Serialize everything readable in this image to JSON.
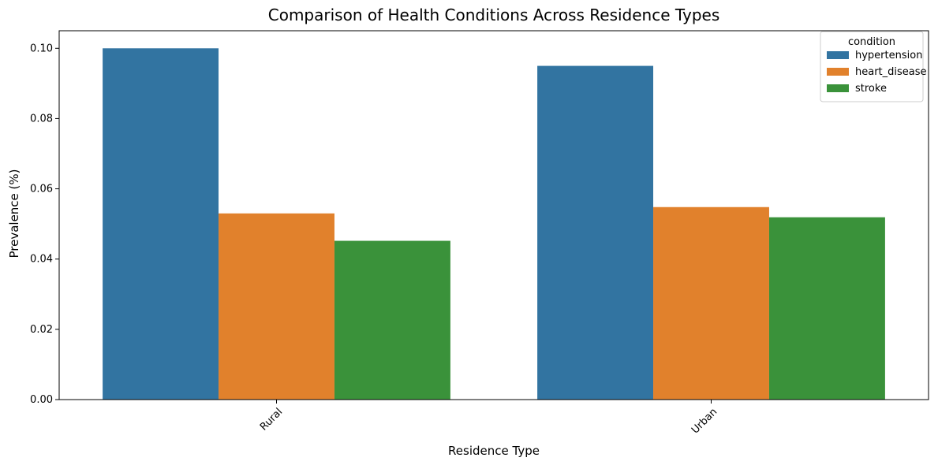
{
  "chart_data": {
    "type": "bar",
    "title": "Comparison of Health Conditions Across Residence Types",
    "xlabel": "Residence Type",
    "ylabel": "Prevalence (%)",
    "categories": [
      "Rural",
      "Urban"
    ],
    "series": [
      {
        "name": "hypertension",
        "values": [
          0.1,
          0.095
        ],
        "color": "#3274a1"
      },
      {
        "name": "heart_disease",
        "values": [
          0.053,
          0.0548
        ],
        "color": "#e1812c"
      },
      {
        "name": "stroke",
        "values": [
          0.0452,
          0.0519
        ],
        "color": "#3a923a"
      }
    ],
    "ylim": [
      0,
      0.105
    ],
    "yticks": [
      "0.00",
      "0.02",
      "0.04",
      "0.06",
      "0.08",
      "0.10"
    ],
    "ytick_values": [
      0,
      0.02,
      0.04,
      0.06,
      0.08,
      0.1
    ],
    "grid": false,
    "legend": {
      "title": "condition",
      "placement": "top-right"
    },
    "xtick_rotation": "45 degrees"
  }
}
